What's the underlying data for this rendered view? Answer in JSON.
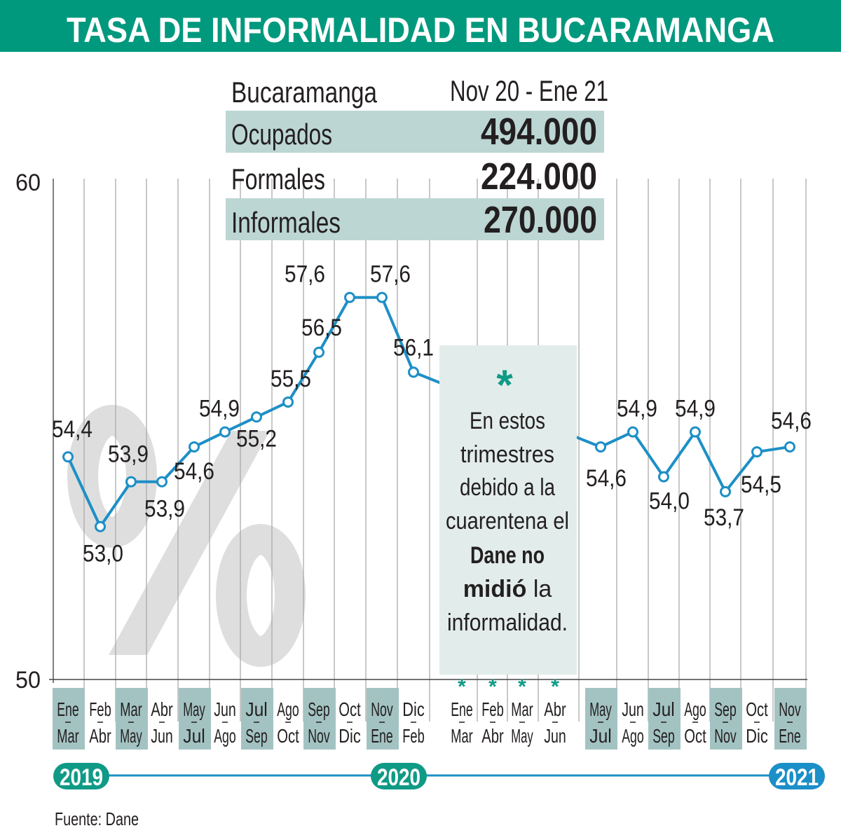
{
  "header": {
    "title": "TASA DE INFORMALIDAD EN BUCARAMANGA"
  },
  "summary_table": {
    "city": "Bucaramanga",
    "period": "Nov 20 - Ene 21",
    "rows": [
      {
        "label": "Ocupados",
        "value": "494.000"
      },
      {
        "label": "Formales",
        "value": "224.000"
      },
      {
        "label": "Informales",
        "value": "270.000"
      }
    ]
  },
  "note": {
    "asterisk": "*",
    "lines": [
      "En estos",
      "trimestres",
      "debido a la",
      "cuarentena el"
    ],
    "bold_line_1": "Dane no",
    "bold_line_2": "midió",
    "line_2_rest": " la",
    "last_line": "informalidad."
  },
  "watermark": "%",
  "years": [
    "2019",
    "2020",
    "2021"
  ],
  "colors": {
    "header": "#00997d",
    "band": "#bcd6d3",
    "line": "#1d8fc6",
    "teal": "#0f9a86",
    "blue": "#1b8fc8",
    "note_bg": "#e2ecea",
    "highlight": "#a3c3c2"
  },
  "source": "Fuente: Dane",
  "chart_data": {
    "type": "line",
    "title": "TASA DE INFORMALIDAD EN BUCARAMANGA",
    "ylabel": "%",
    "ylim": [
      50,
      60
    ],
    "yticks": [
      "50",
      "60"
    ],
    "categories": [
      [
        "Ene",
        "Mar"
      ],
      [
        "Feb",
        "Abr"
      ],
      [
        "Mar",
        "May"
      ],
      [
        "Abr",
        "Jun"
      ],
      [
        "May",
        "Jul"
      ],
      [
        "Jun",
        "Ago"
      ],
      [
        "Jul",
        "Sep"
      ],
      [
        "Ago",
        "Oct"
      ],
      [
        "Sep",
        "Nov"
      ],
      [
        "Oct",
        "Dic"
      ],
      [
        "Nov",
        "Ene"
      ],
      [
        "Dic",
        "Feb"
      ],
      [
        "Ene",
        "Mar"
      ],
      [
        "Feb",
        "Abr"
      ],
      [
        "Mar",
        "May"
      ],
      [
        "Abr",
        "Jun"
      ],
      [
        "May",
        "Jul"
      ],
      [
        "Jun",
        "Ago"
      ],
      [
        "Jul",
        "Sep"
      ],
      [
        "Ago",
        "Oct"
      ],
      [
        "Sep",
        "Nov"
      ],
      [
        "Oct",
        "Dic"
      ],
      [
        "Nov",
        "Ene"
      ]
    ],
    "not_measured_marker": "*",
    "series": [
      {
        "name": "Tasa de informalidad",
        "values": [
          54.4,
          53.0,
          53.9,
          53.9,
          54.6,
          54.9,
          55.2,
          55.5,
          56.5,
          57.6,
          57.6,
          56.1,
          null,
          null,
          null,
          null,
          54.6,
          54.9,
          54.0,
          54.9,
          53.7,
          54.5,
          54.6
        ],
        "labels": [
          "54,4",
          "53,0",
          "53,9",
          "53,9",
          "54,6",
          "54,9",
          "55,2",
          "55,5",
          "56,5",
          "57,6",
          "57,6",
          "56,1",
          "",
          "",
          "",
          "",
          "54,6",
          "54,9",
          "54,0",
          "54,9",
          "53,7",
          "54,5",
          "54,6"
        ]
      }
    ]
  }
}
